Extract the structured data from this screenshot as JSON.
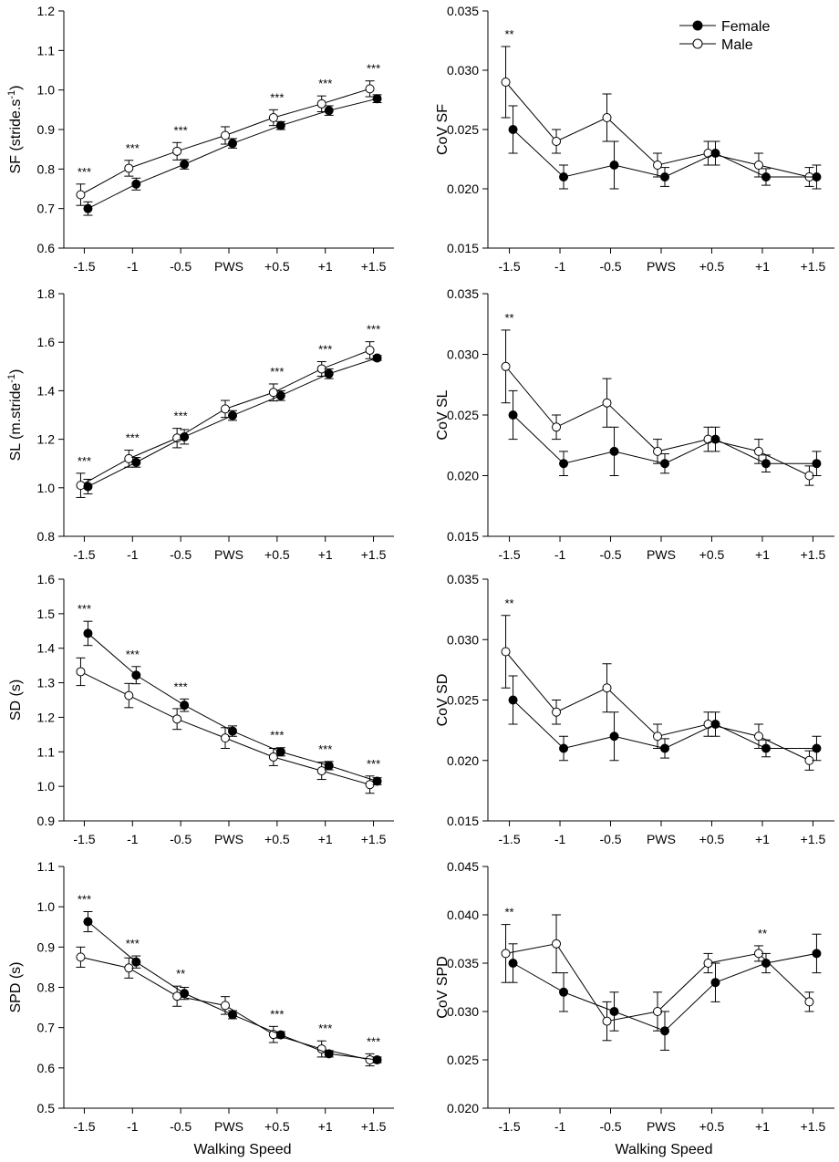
{
  "figure": {
    "x_axis_title": "Walking Speed",
    "legend": [
      {
        "name": "Female",
        "marker": "filled-circle"
      },
      {
        "name": "Male",
        "marker": "open-circle"
      }
    ],
    "colors": {
      "line": "#000000",
      "female_fill": "#000000",
      "male_fill": "#ffffff"
    }
  },
  "chart_data": [
    {
      "type": "line",
      "id": "sf",
      "ylabel": "SF (stride.s",
      "ylabel_sup": "-1",
      "ylabel_end": ")",
      "ylim": [
        0.6,
        1.2
      ],
      "yticks": [
        "0.6",
        "0.7",
        "0.8",
        "0.9",
        "1.0",
        "1.1",
        "1.2"
      ],
      "categories": [
        "-1.5",
        "-1",
        "-0.5",
        "PWS",
        "+0.5",
        "+1",
        "+1.5"
      ],
      "series": [
        {
          "name": "Female",
          "values": [
            0.7,
            0.762,
            0.812,
            0.865,
            0.91,
            0.948,
            0.978
          ],
          "err": [
            0.017,
            0.015,
            0.012,
            0.012,
            0.01,
            0.012,
            0.01
          ]
        },
        {
          "name": "Male",
          "values": [
            0.735,
            0.802,
            0.845,
            0.885,
            0.93,
            0.965,
            1.003
          ],
          "err": [
            0.027,
            0.02,
            0.022,
            0.022,
            0.02,
            0.02,
            0.02
          ]
        }
      ],
      "annotations": [
        {
          "index": 0,
          "label": "***"
        },
        {
          "index": 1,
          "label": "***"
        },
        {
          "index": 2,
          "label": "***"
        },
        {
          "index": 4,
          "label": "***"
        },
        {
          "index": 5,
          "label": "***"
        },
        {
          "index": 6,
          "label": "***"
        }
      ]
    },
    {
      "type": "line",
      "id": "cov-sf",
      "ylabel": "CoV SF",
      "ylim": [
        0.015,
        0.035
      ],
      "yticks": [
        "0.015",
        "0.020",
        "0.025",
        "0.030",
        "0.035"
      ],
      "categories": [
        "-1.5",
        "-1",
        "-0.5",
        "PWS",
        "+0.5",
        "+1",
        "+1.5"
      ],
      "series": [
        {
          "name": "Female",
          "values": [
            0.025,
            0.021,
            0.022,
            0.021,
            0.023,
            0.021,
            0.021
          ],
          "err": [
            0.002,
            0.001,
            0.002,
            0.0008,
            0.001,
            0.0007,
            0.001
          ]
        },
        {
          "name": "Male",
          "values": [
            0.029,
            0.024,
            0.026,
            0.022,
            0.023,
            0.022,
            0.021
          ],
          "err": [
            0.003,
            0.001,
            0.002,
            0.001,
            0.001,
            0.001,
            0.0008
          ]
        }
      ],
      "annotations": [
        {
          "index": 0,
          "label": "**"
        }
      ]
    },
    {
      "type": "line",
      "id": "sl",
      "ylabel": "SL (m.stride",
      "ylabel_sup": "-1",
      "ylabel_end": ")",
      "ylim": [
        0.8,
        1.8
      ],
      "yticks": [
        "0.8",
        "1.0",
        "1.2",
        "1.4",
        "1.6",
        "1.8"
      ],
      "categories": [
        "-1.5",
        "-1",
        "-0.5",
        "PWS",
        "+0.5",
        "+1",
        "+1.5"
      ],
      "series": [
        {
          "name": "Female",
          "values": [
            1.005,
            1.105,
            1.21,
            1.298,
            1.38,
            1.47,
            1.535
          ],
          "err": [
            0.03,
            0.02,
            0.03,
            0.02,
            0.02,
            0.02,
            0.01
          ]
        },
        {
          "name": "Male",
          "values": [
            1.01,
            1.12,
            1.205,
            1.325,
            1.393,
            1.49,
            1.567
          ],
          "err": [
            0.05,
            0.035,
            0.04,
            0.035,
            0.035,
            0.03,
            0.035
          ]
        }
      ],
      "annotations": [
        {
          "index": 0,
          "label": "***"
        },
        {
          "index": 1,
          "label": "***"
        },
        {
          "index": 2,
          "label": "***"
        },
        {
          "index": 4,
          "label": "***"
        },
        {
          "index": 5,
          "label": "***"
        },
        {
          "index": 6,
          "label": "***"
        }
      ]
    },
    {
      "type": "line",
      "id": "cov-sl",
      "ylabel": "CoV SL",
      "ylim": [
        0.015,
        0.035
      ],
      "yticks": [
        "0.015",
        "0.020",
        "0.025",
        "0.030",
        "0.035"
      ],
      "categories": [
        "-1.5",
        "-1",
        "-0.5",
        "PWS",
        "+0.5",
        "+1",
        "+1.5"
      ],
      "series": [
        {
          "name": "Female",
          "values": [
            0.025,
            0.021,
            0.022,
            0.021,
            0.023,
            0.021,
            0.021
          ],
          "err": [
            0.002,
            0.001,
            0.002,
            0.0008,
            0.001,
            0.0007,
            0.001
          ]
        },
        {
          "name": "Male",
          "values": [
            0.029,
            0.024,
            0.026,
            0.022,
            0.023,
            0.022,
            0.02
          ],
          "err": [
            0.003,
            0.001,
            0.002,
            0.001,
            0.001,
            0.001,
            0.0008
          ]
        }
      ],
      "annotations": [
        {
          "index": 0,
          "label": "**"
        }
      ]
    },
    {
      "type": "line",
      "id": "sd",
      "ylabel": "SD (s)",
      "ylim": [
        0.9,
        1.6
      ],
      "yticks": [
        "0.9",
        "1.0",
        "1.1",
        "1.2",
        "1.3",
        "1.4",
        "1.5",
        "1.6"
      ],
      "categories": [
        "-1.5",
        "-1",
        "-0.5",
        "PWS",
        "+0.5",
        "+1",
        "+1.5"
      ],
      "series": [
        {
          "name": "Female",
          "values": [
            1.443,
            1.322,
            1.235,
            1.16,
            1.1,
            1.06,
            1.015
          ],
          "err": [
            0.035,
            0.025,
            0.018,
            0.015,
            0.012,
            0.012,
            0.01
          ]
        },
        {
          "name": "Male",
          "values": [
            1.332,
            1.263,
            1.195,
            1.14,
            1.085,
            1.045,
            1.005
          ],
          "err": [
            0.04,
            0.035,
            0.03,
            0.03,
            0.025,
            0.025,
            0.025
          ]
        }
      ],
      "annotations": [
        {
          "index": 0,
          "label": "***"
        },
        {
          "index": 1,
          "label": "***"
        },
        {
          "index": 2,
          "label": "***"
        },
        {
          "index": 4,
          "label": "***"
        },
        {
          "index": 5,
          "label": "***"
        },
        {
          "index": 6,
          "label": "***"
        }
      ]
    },
    {
      "type": "line",
      "id": "cov-sd",
      "ylabel": "CoV SD",
      "ylim": [
        0.015,
        0.035
      ],
      "yticks": [
        "0.015",
        "0.020",
        "0.025",
        "0.030",
        "0.035"
      ],
      "categories": [
        "-1.5",
        "-1",
        "-0.5",
        "PWS",
        "+0.5",
        "+1",
        "+1.5"
      ],
      "series": [
        {
          "name": "Female",
          "values": [
            0.025,
            0.021,
            0.022,
            0.021,
            0.023,
            0.021,
            0.021
          ],
          "err": [
            0.002,
            0.001,
            0.002,
            0.0008,
            0.001,
            0.0007,
            0.001
          ]
        },
        {
          "name": "Male",
          "values": [
            0.029,
            0.024,
            0.026,
            0.022,
            0.023,
            0.022,
            0.02
          ],
          "err": [
            0.003,
            0.001,
            0.002,
            0.001,
            0.001,
            0.001,
            0.0008
          ]
        }
      ],
      "annotations": [
        {
          "index": 0,
          "label": "**"
        }
      ]
    },
    {
      "type": "line",
      "id": "spd",
      "ylabel": "SPD (s)",
      "ylim": [
        0.5,
        1.1
      ],
      "yticks": [
        "0.5",
        "0.6",
        "0.7",
        "0.8",
        "0.9",
        "1.0",
        "1.1"
      ],
      "categories": [
        "-1.5",
        "-1",
        "-0.5",
        "PWS",
        "+0.5",
        "+1",
        "+1.5"
      ],
      "series": [
        {
          "name": "Female",
          "values": [
            0.963,
            0.863,
            0.785,
            0.732,
            0.682,
            0.635,
            0.62
          ],
          "err": [
            0.025,
            0.015,
            0.015,
            0.01,
            0.008,
            0.008,
            0.007
          ]
        },
        {
          "name": "Male",
          "values": [
            0.875,
            0.848,
            0.778,
            0.755,
            0.683,
            0.647,
            0.62
          ],
          "err": [
            0.025,
            0.025,
            0.025,
            0.022,
            0.02,
            0.02,
            0.015
          ]
        }
      ],
      "annotations": [
        {
          "index": 0,
          "label": "***"
        },
        {
          "index": 1,
          "label": "***"
        },
        {
          "index": 2,
          "label": "**"
        },
        {
          "index": 4,
          "label": "***"
        },
        {
          "index": 5,
          "label": "***"
        },
        {
          "index": 6,
          "label": "***"
        }
      ]
    },
    {
      "type": "line",
      "id": "cov-spd",
      "ylabel": "CoV SPD",
      "ylim": [
        0.02,
        0.045
      ],
      "yticks": [
        "0.020",
        "0.025",
        "0.030",
        "0.035",
        "0.040",
        "0.045"
      ],
      "categories": [
        "-1.5",
        "-1",
        "-0.5",
        "PWS",
        "+0.5",
        "+1",
        "+1.5"
      ],
      "series": [
        {
          "name": "Female",
          "values": [
            0.035,
            0.032,
            0.03,
            0.028,
            0.033,
            0.035,
            0.036
          ],
          "err": [
            0.002,
            0.002,
            0.002,
            0.002,
            0.002,
            0.001,
            0.002
          ]
        },
        {
          "name": "Male",
          "values": [
            0.036,
            0.037,
            0.029,
            0.03,
            0.035,
            0.036,
            0.031
          ],
          "err": [
            0.003,
            0.003,
            0.002,
            0.002,
            0.001,
            0.0008,
            0.001
          ]
        }
      ],
      "annotations": [
        {
          "index": 0,
          "label": "**"
        },
        {
          "index": 5,
          "label": "**"
        }
      ]
    }
  ]
}
